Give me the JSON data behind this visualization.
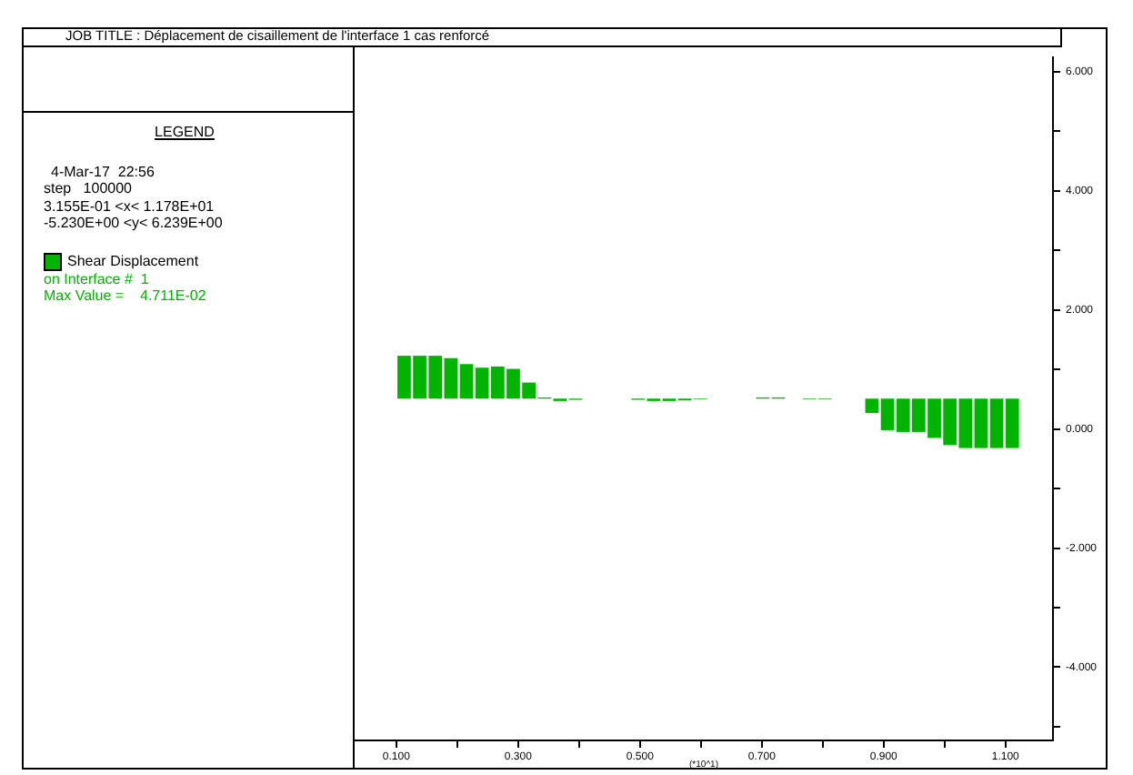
{
  "chart_data": {
    "type": "bar",
    "title": "JOB TITLE : Déplacement de cisaillement de l'interface 1 cas renforcé",
    "xlabel": "(*10^1)",
    "x": [
      0.1128,
      0.1384,
      0.164,
      0.1896,
      0.2152,
      0.2408,
      0.2664,
      0.292,
      0.3176,
      0.3432,
      0.3688,
      0.3944,
      0.42,
      0.4456,
      0.4712,
      0.4968,
      0.5224,
      0.548,
      0.5736,
      0.5992,
      0.6248,
      0.6504,
      0.676,
      0.7016,
      0.7272,
      0.7528,
      0.7784,
      0.804,
      0.8296,
      0.8552,
      0.8808,
      0.9064,
      0.932,
      0.9576,
      0.9832,
      1.0088,
      1.0344,
      1.06,
      1.0856,
      1.1112
    ],
    "series": [
      {
        "name": "Shear Displacement",
        "color": "#00b400",
        "base": [
          0.51,
          0.51,
          0.51,
          0.51,
          0.51,
          0.51,
          0.51,
          0.51,
          0.51,
          0.51,
          0.51,
          0.51,
          null,
          null,
          null,
          0.51,
          0.51,
          0.51,
          0.51,
          0.51,
          null,
          null,
          null,
          0.51,
          0.51,
          null,
          0.51,
          0.51,
          null,
          null,
          0.51,
          0.51,
          0.51,
          0.51,
          0.51,
          0.51,
          0.51,
          0.51,
          0.51,
          0.51
        ],
        "values": [
          0.72,
          0.72,
          0.72,
          0.68,
          0.58,
          0.52,
          0.54,
          0.5,
          0.27,
          0.02,
          -0.04,
          -0.02,
          null,
          null,
          null,
          -0.02,
          -0.04,
          -0.04,
          -0.03,
          -0.01,
          null,
          null,
          null,
          0.02,
          0.02,
          null,
          -0.01,
          -0.01,
          null,
          null,
          -0.24,
          -0.53,
          -0.56,
          -0.56,
          -0.66,
          -0.78,
          -0.83,
          -0.83,
          -0.83,
          -0.83
        ]
      }
    ],
    "xlim": [
      0.03155,
      1.178
    ],
    "xticks": [
      {
        "value": 0.1,
        "label": "0.100"
      },
      {
        "value": 0.2,
        "label": null
      },
      {
        "value": 0.3,
        "label": "0.300"
      },
      {
        "value": 0.4,
        "label": null
      },
      {
        "value": 0.5,
        "label": "0.500"
      },
      {
        "value": 0.6,
        "label": null
      },
      {
        "value": 0.7,
        "label": "0.700"
      },
      {
        "value": 0.8,
        "label": null
      },
      {
        "value": 0.9,
        "label": "0.900"
      },
      {
        "value": 1.0,
        "label": null
      },
      {
        "value": 1.1,
        "label": "1.100"
      }
    ],
    "ylim": [
      -5.23,
      6.239
    ],
    "yticks": [
      {
        "value": -5,
        "label": null
      },
      {
        "value": -4,
        "label": "-4.000"
      },
      {
        "value": -3,
        "label": null
      },
      {
        "value": -2,
        "label": "-2.000"
      },
      {
        "value": -1,
        "label": null
      },
      {
        "value": 0,
        "label": "0.000"
      },
      {
        "value": 1,
        "label": null
      },
      {
        "value": 2,
        "label": "2.000"
      },
      {
        "value": 3,
        "label": null
      },
      {
        "value": 4,
        "label": "4.000"
      },
      {
        "value": 5,
        "label": null
      },
      {
        "value": 6,
        "label": "6.000"
      }
    ],
    "grid": false,
    "legend": "left",
    "annotations": [
      "LEGEND",
      "4-Mar-17  22:56",
      "step   100000",
      "3.155E-01 <x< 1.178E+01",
      "-5.230E+00 <y< 6.239E+00",
      "on Interface #  1",
      "Max Value =    4.711E-02"
    ]
  }
}
